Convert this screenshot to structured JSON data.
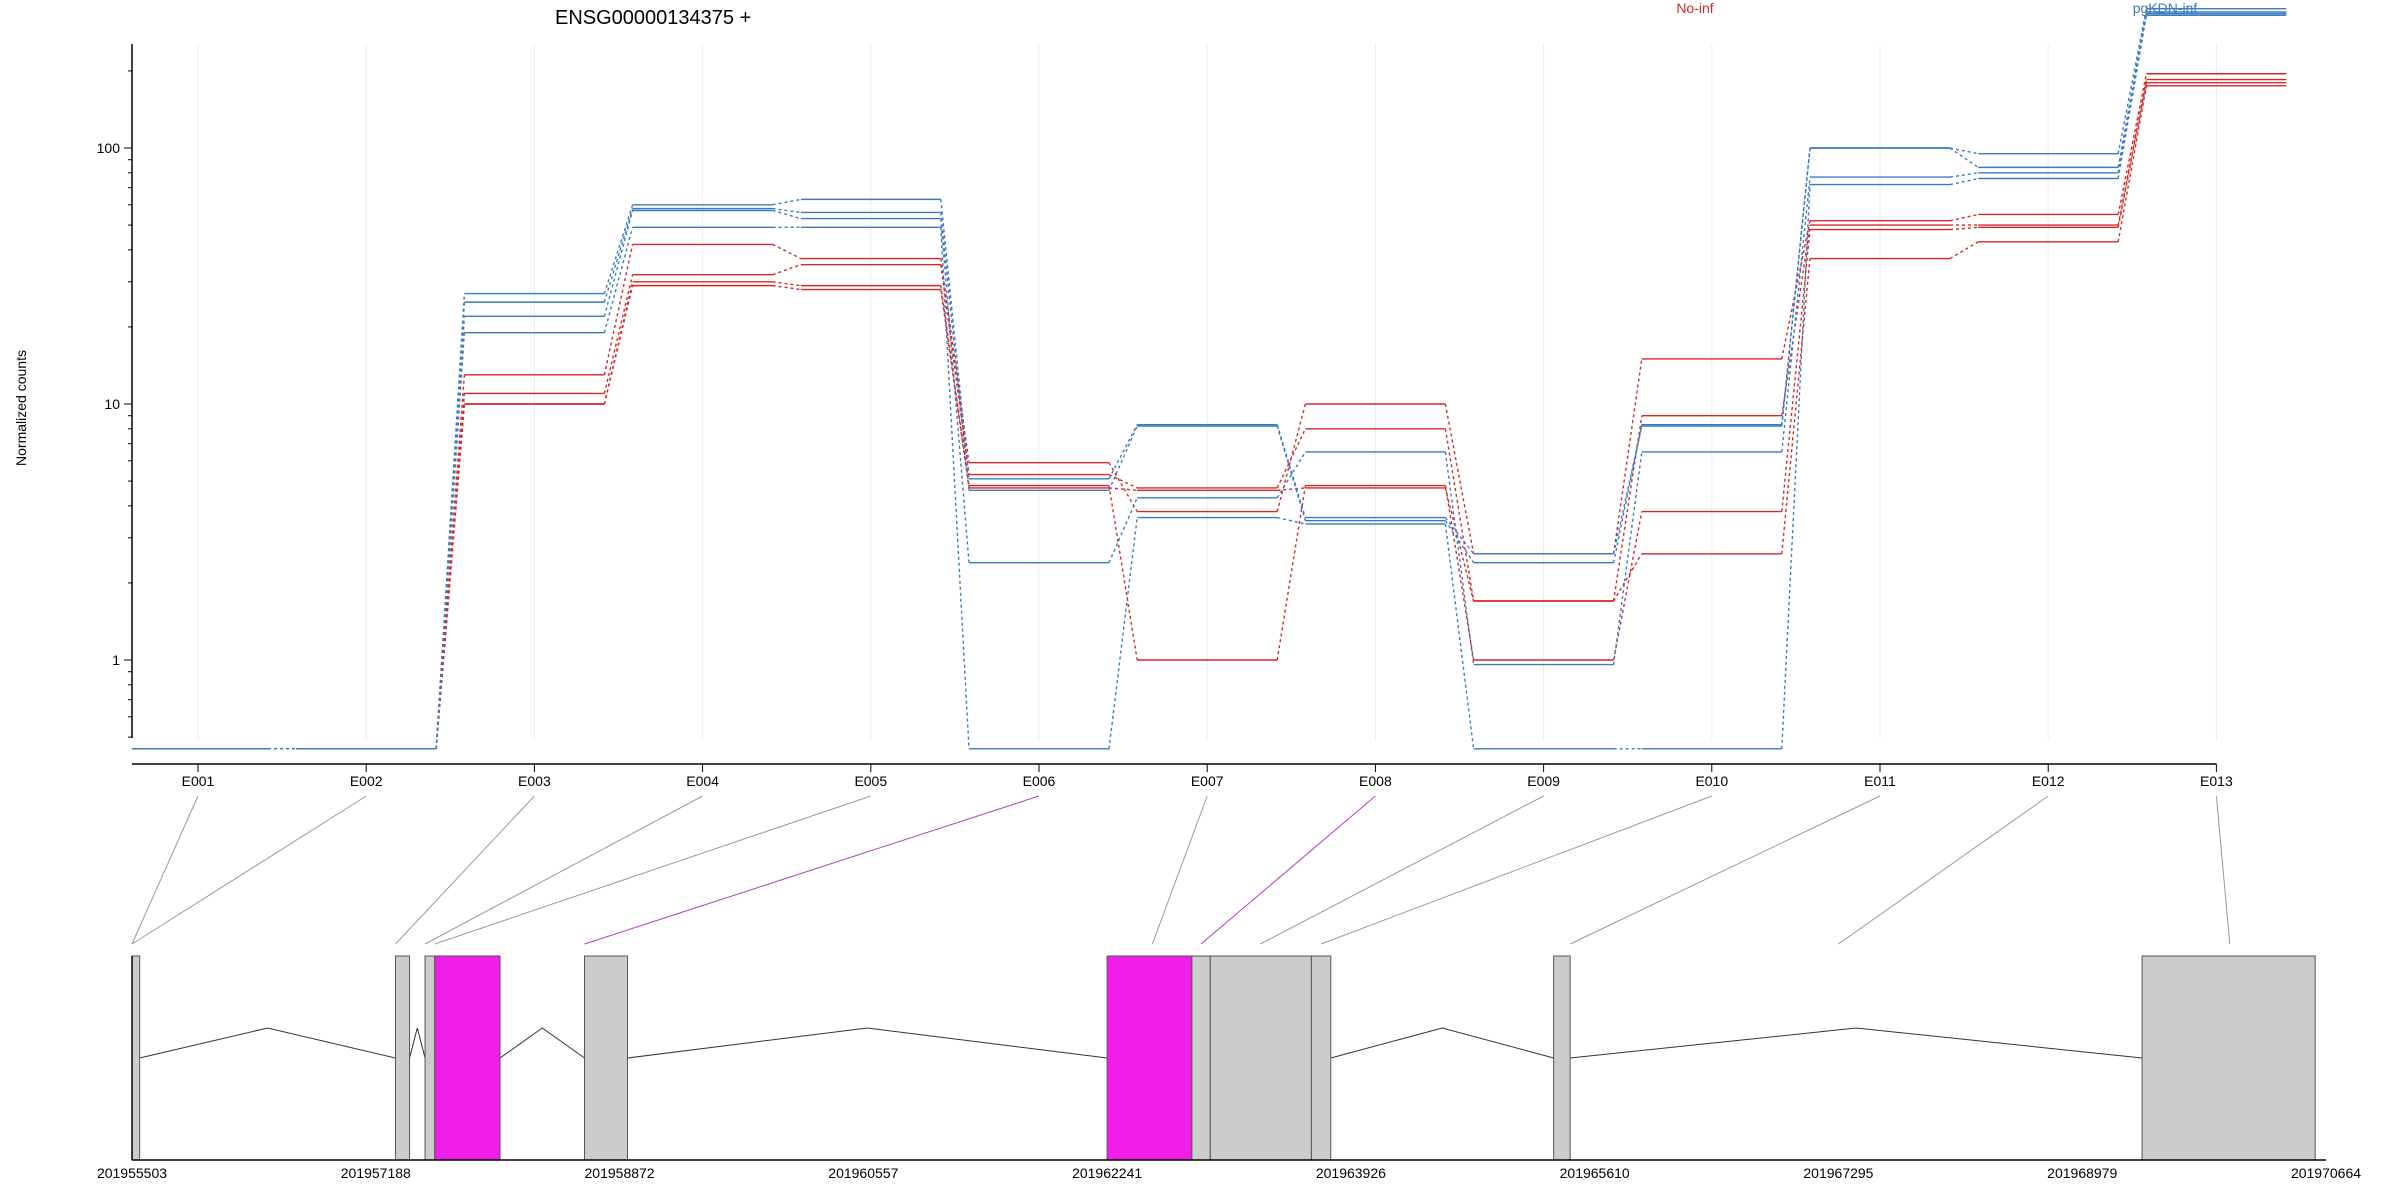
{
  "chart_data": {
    "type": "line",
    "title": "ENSG00000134375 +",
    "ylabel": "Normalized counts",
    "xlabel": "",
    "y_scale": "log",
    "grid": "vertical",
    "legend_placement": "top",
    "categories": [
      "E001",
      "E002",
      "E003",
      "E004",
      "E005",
      "E006",
      "E007",
      "E008",
      "E009",
      "E010",
      "E011",
      "E012",
      "E013"
    ],
    "y_ticks": [
      {
        "value": 1,
        "label": "1"
      },
      {
        "value": 10,
        "label": "10"
      },
      {
        "value": 100,
        "label": "100"
      }
    ],
    "series": [
      {
        "name": "No-inf",
        "color": "#d62728",
        "values": [
          0.45,
          0.45,
          13,
          42,
          37,
          5.9,
          3.8,
          10,
          2.6,
          15,
          52,
          55,
          195
        ]
      },
      {
        "name": "No-inf",
        "color": "#d62728",
        "values": [
          0.45,
          0.45,
          11,
          32,
          35,
          5.3,
          4.7,
          8,
          1.7,
          9,
          50,
          50,
          185
        ]
      },
      {
        "name": "No-inf",
        "color": "#d62728",
        "values": [
          0.45,
          0.45,
          10,
          30,
          29,
          4.8,
          1.0,
          4.8,
          1.0,
          3.8,
          48,
          49,
          180
        ]
      },
      {
        "name": "No-inf",
        "color": "#d62728",
        "values": [
          0.45,
          0.45,
          10,
          29,
          28,
          4.7,
          4.6,
          4.7,
          1.7,
          2.6,
          37,
          43,
          175
        ]
      },
      {
        "name": "pgKDN-inf",
        "color": "#3a7bbf",
        "values": [
          0.45,
          0.45,
          27,
          60,
          63,
          5.1,
          8.3,
          3.6,
          2.6,
          8.2,
          100,
          95,
          350
        ]
      },
      {
        "name": "pgKDN-inf",
        "color": "#3a7bbf",
        "values": [
          0.45,
          0.45,
          25,
          58,
          56,
          4.6,
          8.2,
          3.5,
          2.4,
          8.3,
          100,
          84,
          340
        ]
      },
      {
        "name": "pgKDN-inf",
        "color": "#3a7bbf",
        "values": [
          0.45,
          0.45,
          22,
          57,
          53,
          2.4,
          4.3,
          6.5,
          0.96,
          6.5,
          77,
          80,
          335
        ]
      },
      {
        "name": "pgKDN-inf",
        "color": "#3a7bbf",
        "values": [
          0.45,
          0.45,
          19,
          49,
          49,
          0.45,
          3.6,
          3.4,
          0.45,
          0.45,
          72,
          76,
          330
        ]
      }
    ],
    "legend": [
      {
        "label": "No-inf",
        "color": "#d62728"
      },
      {
        "label": "pgKDN-inf",
        "color": "#3a7bbf"
      }
    ],
    "gene_model": {
      "start": 201955503,
      "end": 201970664,
      "ticks": [
        "201955503",
        "201957188",
        "201958872",
        "201960557",
        "201962241",
        "201963926",
        "201965610",
        "201967295",
        "201968979",
        "201970664"
      ],
      "highlight_color": "#f01ee8",
      "box_color": "#cccccc",
      "highlight_bins": [
        "E006",
        "E008"
      ],
      "exon_blocks": [
        {
          "start": 201955503,
          "end": 201955556,
          "highlight": false
        },
        {
          "start": 201957324,
          "end": 201957421,
          "highlight": false
        },
        {
          "start": 201957528,
          "end": 201957595,
          "highlight": false
        },
        {
          "start": 201957595,
          "end": 201958046,
          "highlight": true
        },
        {
          "start": 201958630,
          "end": 201958927,
          "highlight": false
        },
        {
          "start": 201962241,
          "end": 201962827,
          "highlight": true
        },
        {
          "start": 201962827,
          "end": 201962954,
          "highlight": false
        },
        {
          "start": 201962954,
          "end": 201963653,
          "highlight": false
        },
        {
          "start": 201963653,
          "end": 201963787,
          "highlight": false
        },
        {
          "start": 201965327,
          "end": 201965441,
          "highlight": false
        },
        {
          "start": 201969393,
          "end": 201970589,
          "highlight": false
        }
      ],
      "bin_anchors": [
        201955503,
        201955503,
        201957324,
        201957528,
        201957595,
        201958630,
        201962554,
        201962890,
        201963300,
        201963720,
        201965441,
        201967295,
        201969999
      ]
    }
  }
}
